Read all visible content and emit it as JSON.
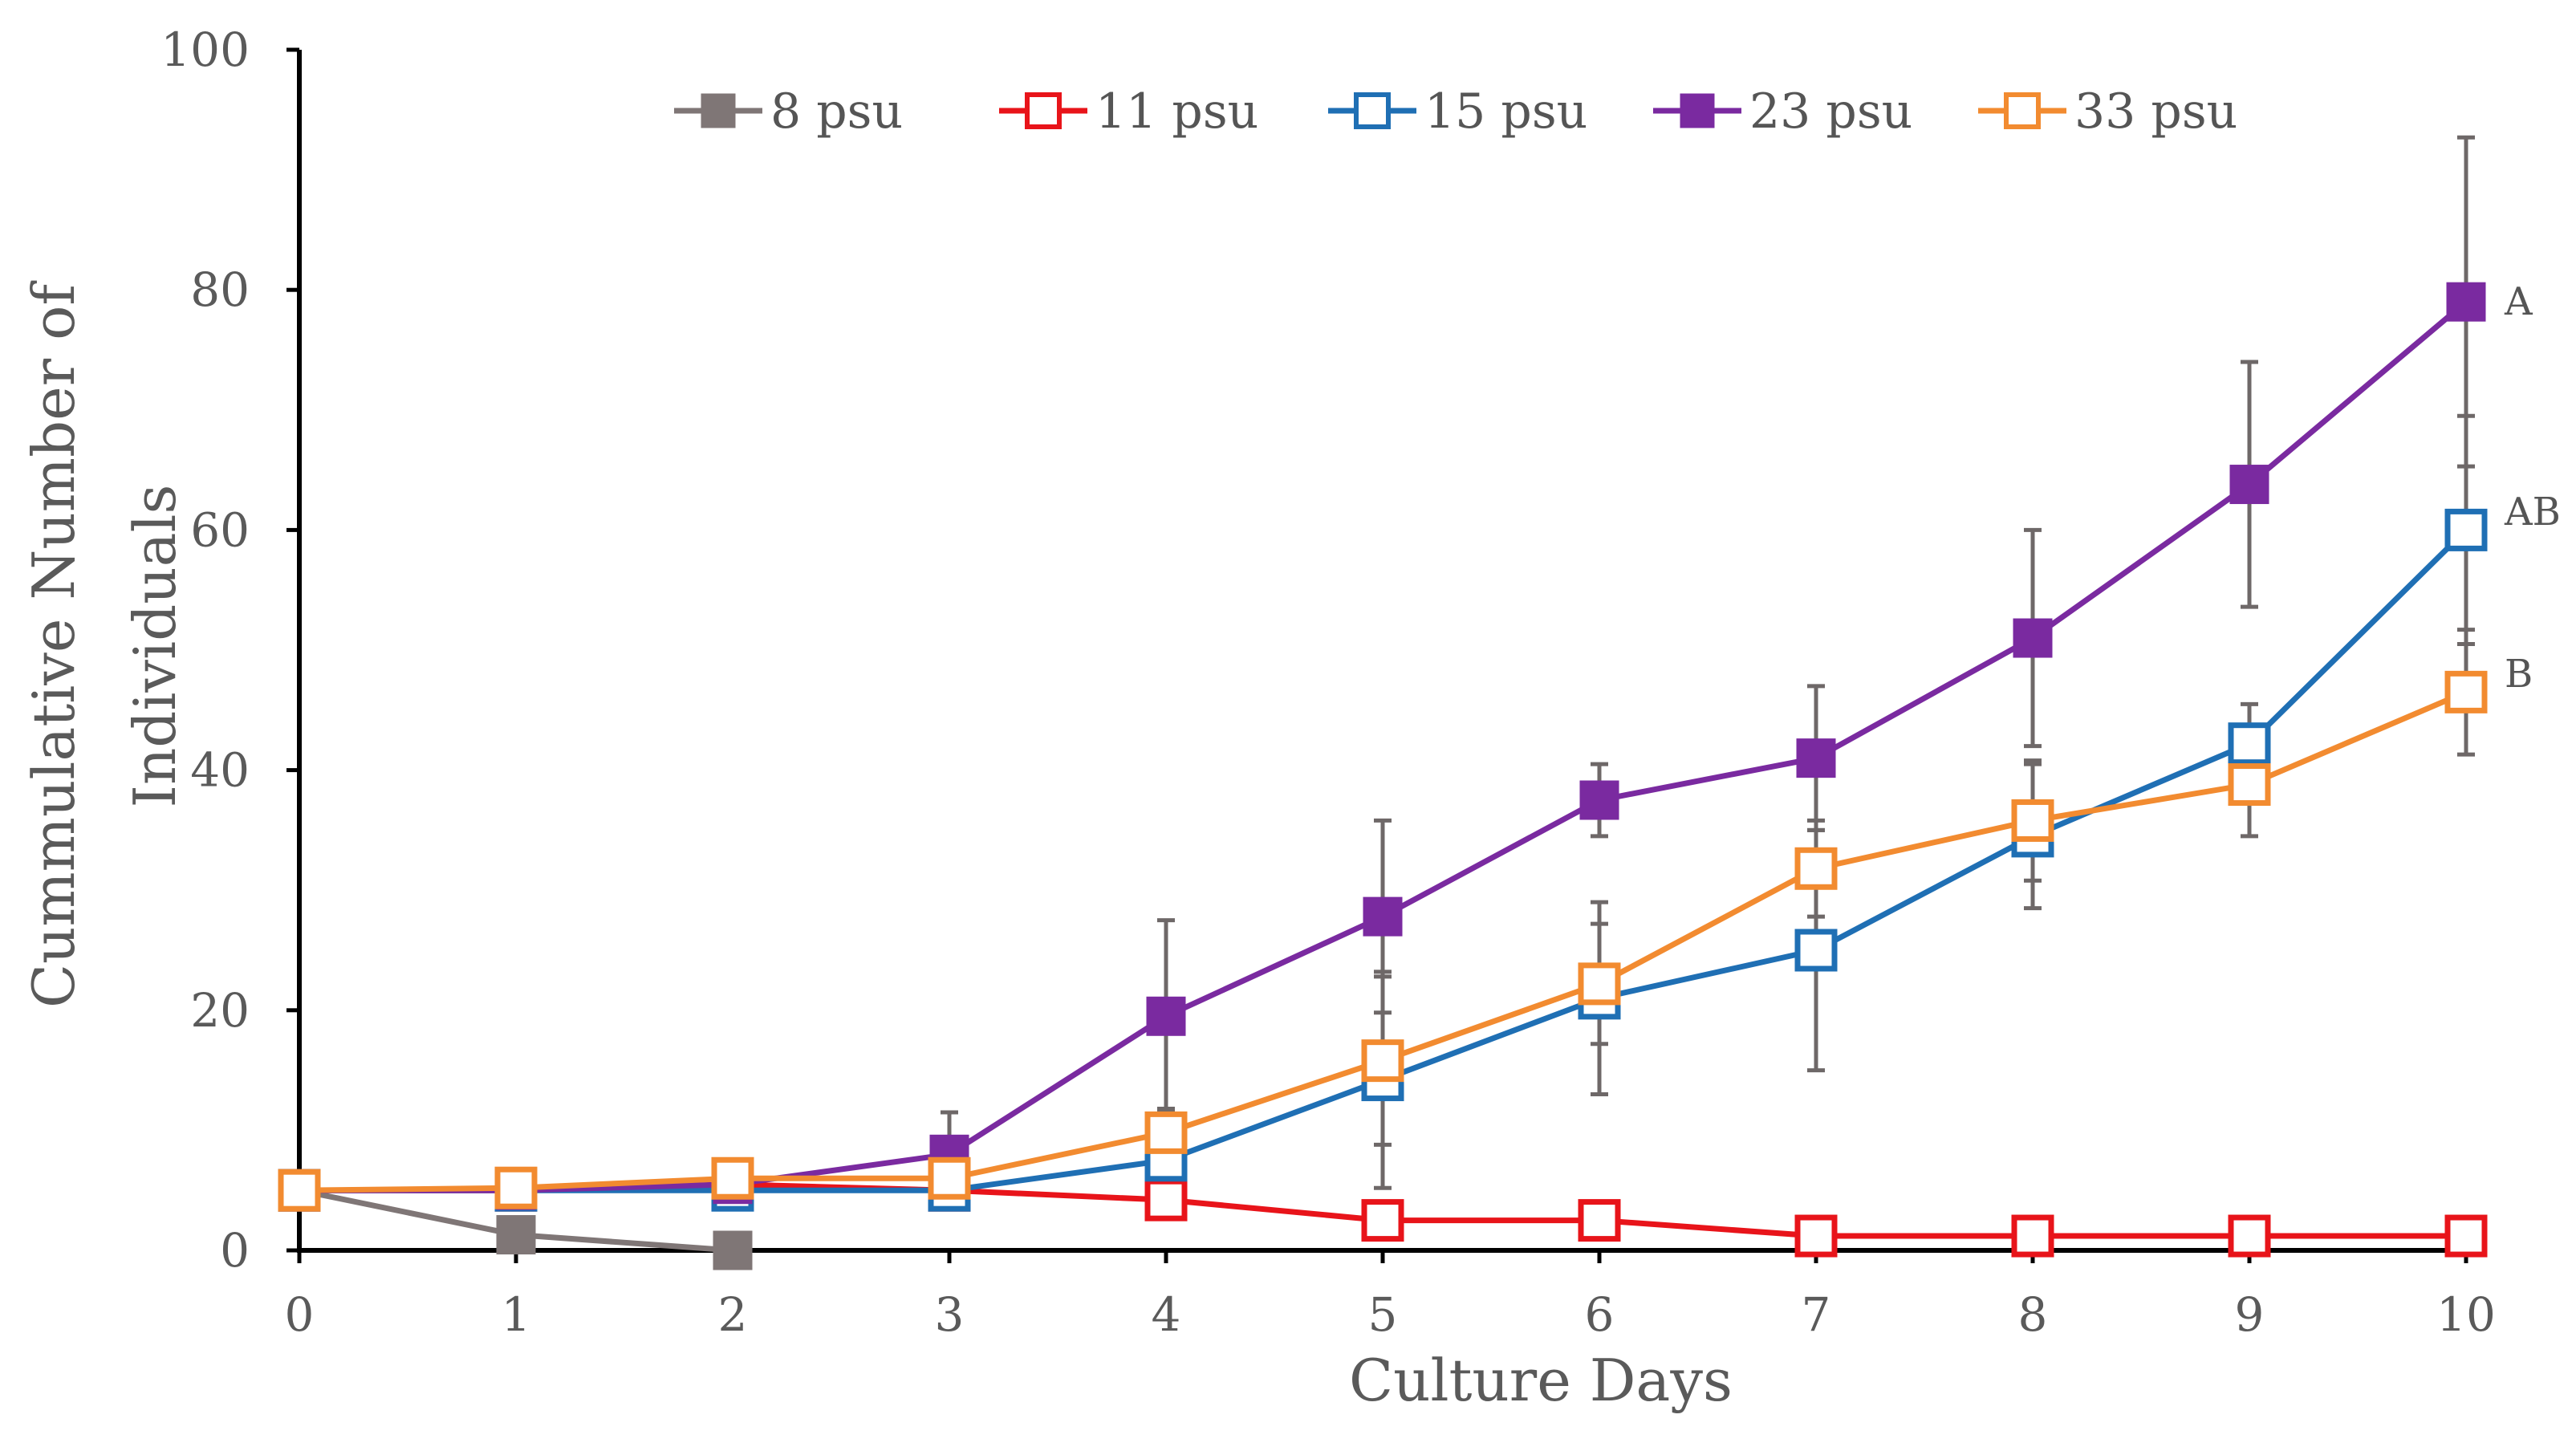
{
  "chart_data": {
    "type": "line",
    "title": "",
    "xlabel": "Culture Days",
    "ylabel_line1": "Cummulative Number of",
    "ylabel_line2": "Individuals",
    "x": [
      0,
      1,
      2,
      3,
      4,
      5,
      6,
      7,
      8,
      9,
      10
    ],
    "xlim": [
      0,
      10
    ],
    "ylim": [
      0,
      100
    ],
    "y_ticks": [
      0,
      20,
      40,
      60,
      80,
      100
    ],
    "x_ticks": [
      0,
      1,
      2,
      3,
      4,
      5,
      6,
      7,
      8,
      9,
      10
    ],
    "legend_placement": "top",
    "series": [
      {
        "name": "8 psu",
        "color": "#7f7676",
        "marker": "filled-square",
        "x": [
          0,
          1,
          2
        ],
        "values": [
          5,
          1.3,
          0
        ],
        "error": [
          0,
          0,
          0
        ]
      },
      {
        "name": "11 psu",
        "color": "#e8141a",
        "marker": "open-square",
        "x": [
          0,
          1,
          2,
          3,
          4,
          5,
          6,
          7,
          8,
          9,
          10
        ],
        "values": [
          5,
          5,
          5.5,
          5,
          4.2,
          2.5,
          2.5,
          1.2,
          1.2,
          1.2,
          1.2
        ],
        "error": [
          0,
          0,
          0,
          0,
          0,
          0,
          0,
          0,
          0,
          0,
          0
        ]
      },
      {
        "name": "15 psu",
        "color": "#1f6fb4",
        "marker": "open-square",
        "x": [
          0,
          1,
          2,
          3,
          4,
          5,
          6,
          7,
          8,
          9,
          10
        ],
        "values": [
          5,
          5,
          5,
          5,
          7.5,
          14.2,
          21,
          25,
          34.5,
          42.2,
          60
        ],
        "error": [
          0,
          0,
          0,
          0,
          4,
          9,
          8,
          10,
          6,
          3.3,
          9.5
        ]
      },
      {
        "name": "23 psu",
        "color": "#7a2aa0",
        "marker": "filled-square",
        "x": [
          0,
          1,
          2,
          3,
          4,
          5,
          6,
          7,
          8,
          9,
          10
        ],
        "values": [
          5,
          5,
          5.5,
          8,
          19.5,
          27.8,
          37.5,
          41,
          51,
          63.8,
          79
        ],
        "error": [
          0,
          0,
          0,
          3.5,
          8,
          8,
          3,
          6,
          9,
          10.2,
          13.7
        ]
      },
      {
        "name": "33 psu",
        "color": "#f28b30",
        "marker": "open-square",
        "x": [
          0,
          1,
          2,
          3,
          4,
          5,
          6,
          7,
          8,
          9,
          10
        ],
        "values": [
          5,
          5.2,
          6,
          6,
          9.8,
          15.8,
          22.2,
          31.8,
          35.8,
          38.8,
          46.5
        ],
        "error": [
          0,
          0,
          0,
          0,
          2,
          7,
          5,
          4,
          5,
          4.3,
          5.2
        ]
      }
    ],
    "annotations": [
      {
        "text": "A",
        "x": 10,
        "y": 79
      },
      {
        "text": "AB",
        "x": 10,
        "y": 61.5
      },
      {
        "text": "B",
        "x": 10,
        "y": 48
      }
    ]
  }
}
